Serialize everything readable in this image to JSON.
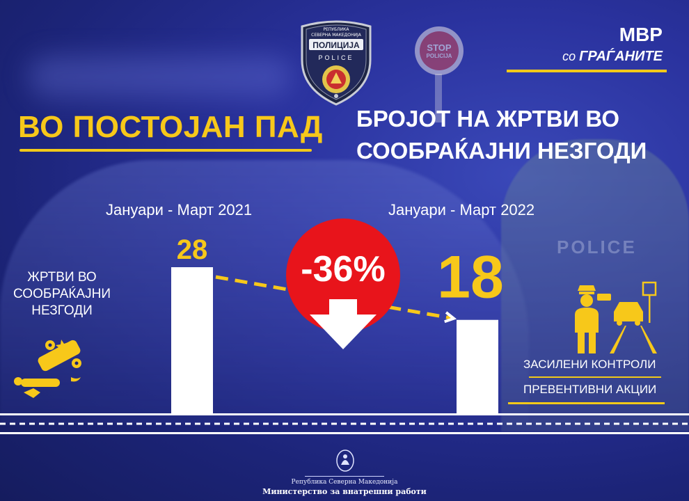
{
  "badge": {
    "line1": "РЕПУБЛИКА",
    "line2": "СЕВЕРНА МАКЕДОНИЈА",
    "line3": "ПОЛИЦИЈА",
    "line4": "POLICE"
  },
  "stop_sign": {
    "line1": "STOP",
    "line2": "POLICIJA"
  },
  "background_vest_text": "POLICE",
  "brand": {
    "title": "МВР",
    "subtitle_prefix": "со",
    "subtitle_main": "ГРАЃАНИТЕ"
  },
  "headline_left": "ВО ПОСТОЈАН ПАД",
  "headline_right": {
    "line1": "БРОЈОТ НА ЖРТВИ ВО",
    "line2": "СООБРАЌАЈНИ НЕЗГОДИ"
  },
  "left_label": {
    "line1": "ЖРТВИ ВО",
    "line2": "СООБРАЌАЈНИ",
    "line3": "НЕЗГОДИ"
  },
  "right_labels": {
    "line1": "ЗАСИЛЕНИ КОНТРОЛИ",
    "line2": "ПРЕВЕНТИВНИ АКЦИИ"
  },
  "change_label": "-36%",
  "footer": {
    "line1": "Република Северна Македонија",
    "line2": "Министерство за внатрешни работи"
  },
  "colors": {
    "accent_yellow": "#f7c81a",
    "red": "#e8141b",
    "background_blue": "#2a329e",
    "bar_white": "#ffffff"
  },
  "icons": [
    "police-badge-icon",
    "stop-sign-icon",
    "car-crash-icon",
    "traffic-police-radar-icon",
    "coat-of-arms-icon"
  ],
  "chart_data": {
    "type": "bar",
    "categories": [
      "Јануари - Март 2021",
      "Јануари - Март 2022"
    ],
    "values": [
      28,
      18
    ],
    "value_labels": [
      "28",
      "18"
    ],
    "ylim": [
      0,
      28
    ],
    "grid": false,
    "annotations": [
      "-36%"
    ]
  }
}
